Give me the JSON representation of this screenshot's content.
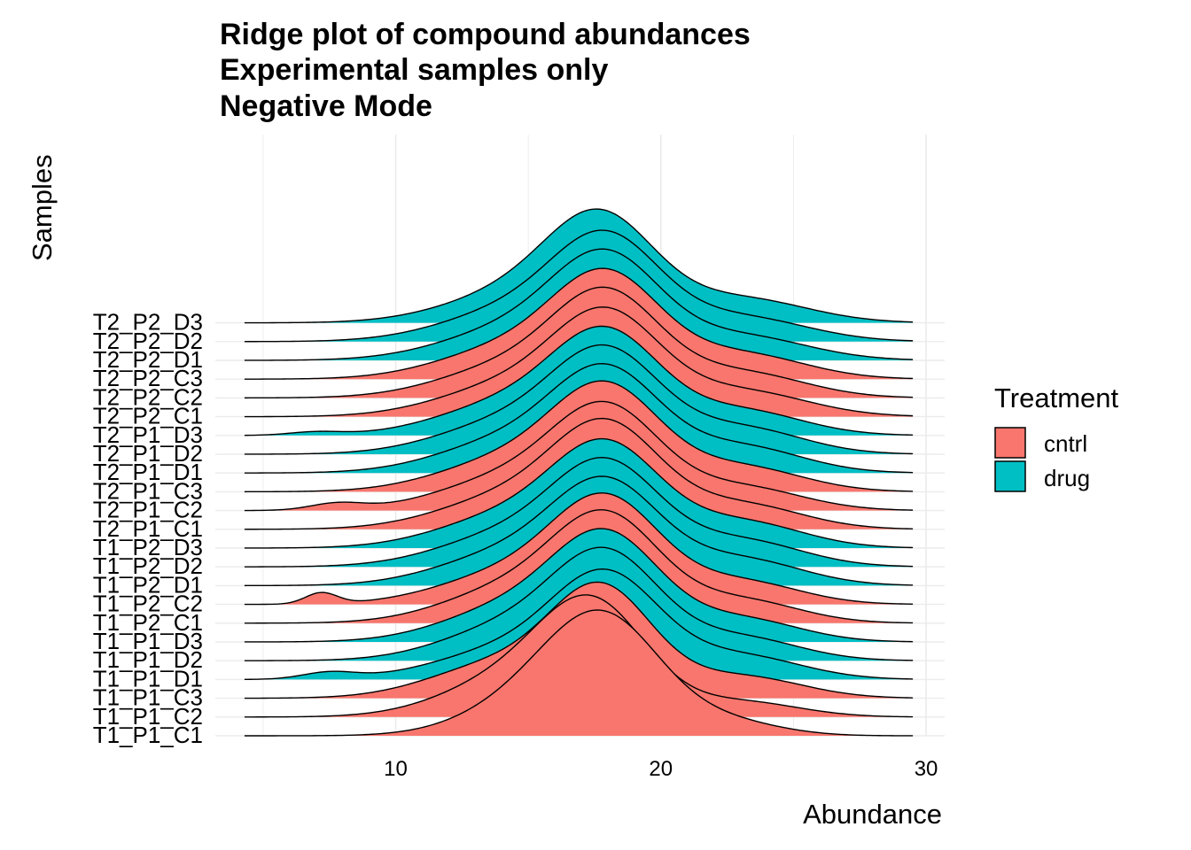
{
  "chart_data": {
    "type": "ridgeline",
    "title_lines": [
      "Ridge plot of compound abundances",
      "Experimental samples only",
      "Negative Mode"
    ],
    "xlabel": "Abundance",
    "ylabel": "Samples",
    "xlim": [
      3.2,
      30.7
    ],
    "xticks": [
      10,
      20,
      30
    ],
    "x_gridlines": true,
    "legend": {
      "title": "Treatment",
      "position": "right",
      "entries": [
        {
          "label": "cntrl",
          "color": "#F8766D"
        },
        {
          "label": "drug",
          "color": "#00BFC4"
        }
      ]
    },
    "density_range": [
      4.3,
      29.5
    ],
    "samples": [
      {
        "name": "T1_P1_C1",
        "treatment": "cntrl",
        "components": [
          [
            18.0,
            2.1,
            0.62
          ],
          [
            15.5,
            2.5,
            0.3
          ],
          [
            22.5,
            2.0,
            0.08
          ]
        ]
      },
      {
        "name": "T1_P1_C2",
        "treatment": "cntrl",
        "components": [
          [
            17.5,
            2.0,
            0.6
          ],
          [
            14.5,
            2.6,
            0.3
          ],
          [
            23.0,
            2.2,
            0.1
          ]
        ]
      },
      {
        "name": "T1_P1_C3",
        "treatment": "cntrl",
        "components": [
          [
            17.8,
            1.9,
            0.58
          ],
          [
            14.0,
            2.6,
            0.27
          ],
          [
            23.0,
            2.3,
            0.15
          ]
        ]
      },
      {
        "name": "T1_P1_D1",
        "treatment": "drug",
        "components": [
          [
            18.0,
            2.0,
            0.56
          ],
          [
            14.5,
            2.8,
            0.26
          ],
          [
            23.0,
            2.3,
            0.16
          ],
          [
            7.5,
            1.0,
            0.02
          ]
        ]
      },
      {
        "name": "T1_P1_D2",
        "treatment": "drug",
        "components": [
          [
            18.0,
            2.0,
            0.58
          ],
          [
            14.5,
            2.6,
            0.27
          ],
          [
            23.0,
            2.2,
            0.15
          ]
        ]
      },
      {
        "name": "T1_P1_D3",
        "treatment": "drug",
        "components": [
          [
            18.0,
            2.0,
            0.58
          ],
          [
            14.5,
            2.6,
            0.27
          ],
          [
            23.0,
            2.2,
            0.15
          ]
        ]
      },
      {
        "name": "T1_P2_C1",
        "treatment": "cntrl",
        "components": [
          [
            18.0,
            2.0,
            0.58
          ],
          [
            14.5,
            2.6,
            0.27
          ],
          [
            23.0,
            2.2,
            0.15
          ]
        ]
      },
      {
        "name": "T1_P2_C2",
        "treatment": "cntrl",
        "components": [
          [
            18.0,
            2.0,
            0.57
          ],
          [
            14.5,
            2.7,
            0.26
          ],
          [
            23.0,
            2.2,
            0.15
          ],
          [
            7.2,
            0.6,
            0.02
          ]
        ]
      },
      {
        "name": "T1_P2_D1",
        "treatment": "drug",
        "components": [
          [
            18.0,
            2.0,
            0.55
          ],
          [
            14.5,
            2.7,
            0.27
          ],
          [
            23.0,
            2.3,
            0.18
          ]
        ]
      },
      {
        "name": "T1_P2_D2",
        "treatment": "drug",
        "components": [
          [
            18.0,
            2.0,
            0.55
          ],
          [
            14.5,
            2.7,
            0.27
          ],
          [
            23.0,
            2.3,
            0.18
          ]
        ]
      },
      {
        "name": "T1_P2_D3",
        "treatment": "drug",
        "components": [
          [
            18.0,
            2.0,
            0.55
          ],
          [
            14.5,
            2.7,
            0.27
          ],
          [
            23.0,
            2.3,
            0.18
          ]
        ]
      },
      {
        "name": "T2_P1_C1",
        "treatment": "cntrl",
        "components": [
          [
            18.0,
            2.0,
            0.56
          ],
          [
            14.5,
            2.7,
            0.27
          ],
          [
            23.0,
            2.3,
            0.17
          ]
        ]
      },
      {
        "name": "T2_P1_C2",
        "treatment": "cntrl",
        "components": [
          [
            18.0,
            2.0,
            0.55
          ],
          [
            14.5,
            2.7,
            0.27
          ],
          [
            23.0,
            2.3,
            0.16
          ],
          [
            7.8,
            1.0,
            0.02
          ]
        ]
      },
      {
        "name": "T2_P1_C3",
        "treatment": "cntrl",
        "components": [
          [
            18.0,
            2.0,
            0.56
          ],
          [
            14.5,
            2.7,
            0.27
          ],
          [
            23.0,
            2.3,
            0.17
          ]
        ]
      },
      {
        "name": "T2_P1_D1",
        "treatment": "drug",
        "components": [
          [
            18.0,
            2.0,
            0.55
          ],
          [
            14.5,
            2.7,
            0.27
          ],
          [
            23.0,
            2.3,
            0.18
          ]
        ]
      },
      {
        "name": "T2_P1_D2",
        "treatment": "drug",
        "components": [
          [
            18.0,
            2.0,
            0.55
          ],
          [
            14.5,
            2.7,
            0.27
          ],
          [
            23.0,
            2.3,
            0.18
          ]
        ]
      },
      {
        "name": "T2_P1_D3",
        "treatment": "drug",
        "components": [
          [
            18.0,
            2.0,
            0.55
          ],
          [
            14.5,
            2.7,
            0.27
          ],
          [
            23.0,
            2.3,
            0.17
          ],
          [
            7.0,
            1.0,
            0.01
          ]
        ]
      },
      {
        "name": "T2_P2_C1",
        "treatment": "cntrl",
        "components": [
          [
            18.0,
            2.0,
            0.55
          ],
          [
            14.5,
            2.7,
            0.26
          ],
          [
            23.0,
            2.5,
            0.19
          ]
        ]
      },
      {
        "name": "T2_P2_C2",
        "treatment": "cntrl",
        "components": [
          [
            18.0,
            2.0,
            0.56
          ],
          [
            14.5,
            2.7,
            0.26
          ],
          [
            23.0,
            2.4,
            0.18
          ]
        ]
      },
      {
        "name": "T2_P2_C3",
        "treatment": "cntrl",
        "components": [
          [
            18.0,
            2.0,
            0.56
          ],
          [
            14.5,
            2.7,
            0.26
          ],
          [
            23.0,
            2.4,
            0.18
          ]
        ]
      },
      {
        "name": "T2_P2_D1",
        "treatment": "drug",
        "components": [
          [
            18.0,
            2.0,
            0.54
          ],
          [
            14.8,
            2.8,
            0.28
          ],
          [
            23.0,
            2.5,
            0.18
          ]
        ]
      },
      {
        "name": "T2_P2_D2",
        "treatment": "drug",
        "components": [
          [
            18.0,
            2.0,
            0.54
          ],
          [
            14.8,
            2.8,
            0.28
          ],
          [
            23.0,
            2.5,
            0.18
          ]
        ]
      },
      {
        "name": "T2_P2_D3",
        "treatment": "drug",
        "components": [
          [
            17.8,
            2.0,
            0.54
          ],
          [
            15.0,
            2.8,
            0.28
          ],
          [
            23.0,
            2.5,
            0.18
          ]
        ]
      }
    ]
  }
}
